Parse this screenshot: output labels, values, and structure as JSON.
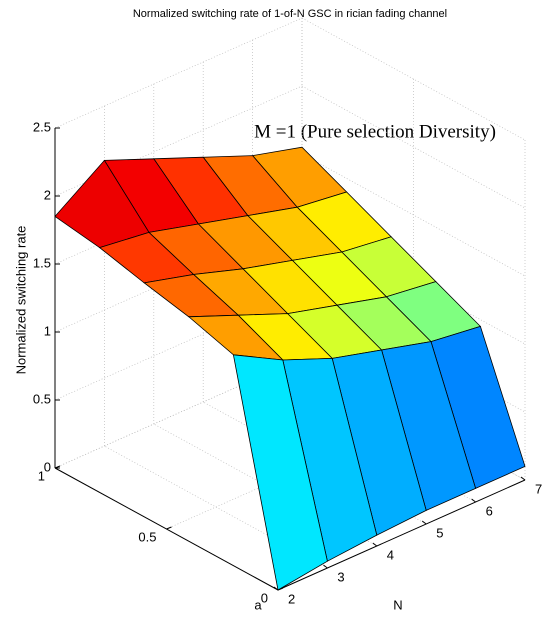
{
  "chart_data": {
    "type": "surface",
    "title": "Normalized switching rate of 1-of-N GSC in rician fading channel",
    "xlabel": "a",
    "ylabel": "N",
    "zlabel": "Normalized switching rate",
    "annotation": "M =1 (Pure selection Diversity)",
    "x": [
      0,
      0.2,
      0.4,
      0.6,
      0.8,
      1
    ],
    "y": [
      2,
      3,
      4,
      5,
      6,
      7
    ],
    "z": [
      [
        0,
        0.05,
        0.08,
        0.1,
        0.1,
        0.1
      ],
      [
        1.55,
        1.35,
        1.2,
        1.1,
        1.0,
        0.95
      ],
      [
        1.65,
        1.5,
        1.35,
        1.25,
        1.15,
        1.1
      ],
      [
        1.72,
        1.62,
        1.5,
        1.4,
        1.3,
        1.25
      ],
      [
        1.8,
        1.75,
        1.65,
        1.55,
        1.45,
        1.4
      ],
      [
        1.85,
        2.1,
        1.95,
        1.8,
        1.65,
        1.55
      ]
    ],
    "xlim": [
      0,
      1
    ],
    "xticks": [
      0,
      0.5,
      1
    ],
    "ylim": [
      2,
      7
    ],
    "yticks": [
      2,
      3,
      4,
      5,
      6,
      7
    ],
    "zlim": [
      0,
      2.5
    ],
    "zticks": [
      0,
      0.5,
      1,
      1.5,
      2,
      2.5
    ],
    "colormap": "jet",
    "grid": true
  }
}
